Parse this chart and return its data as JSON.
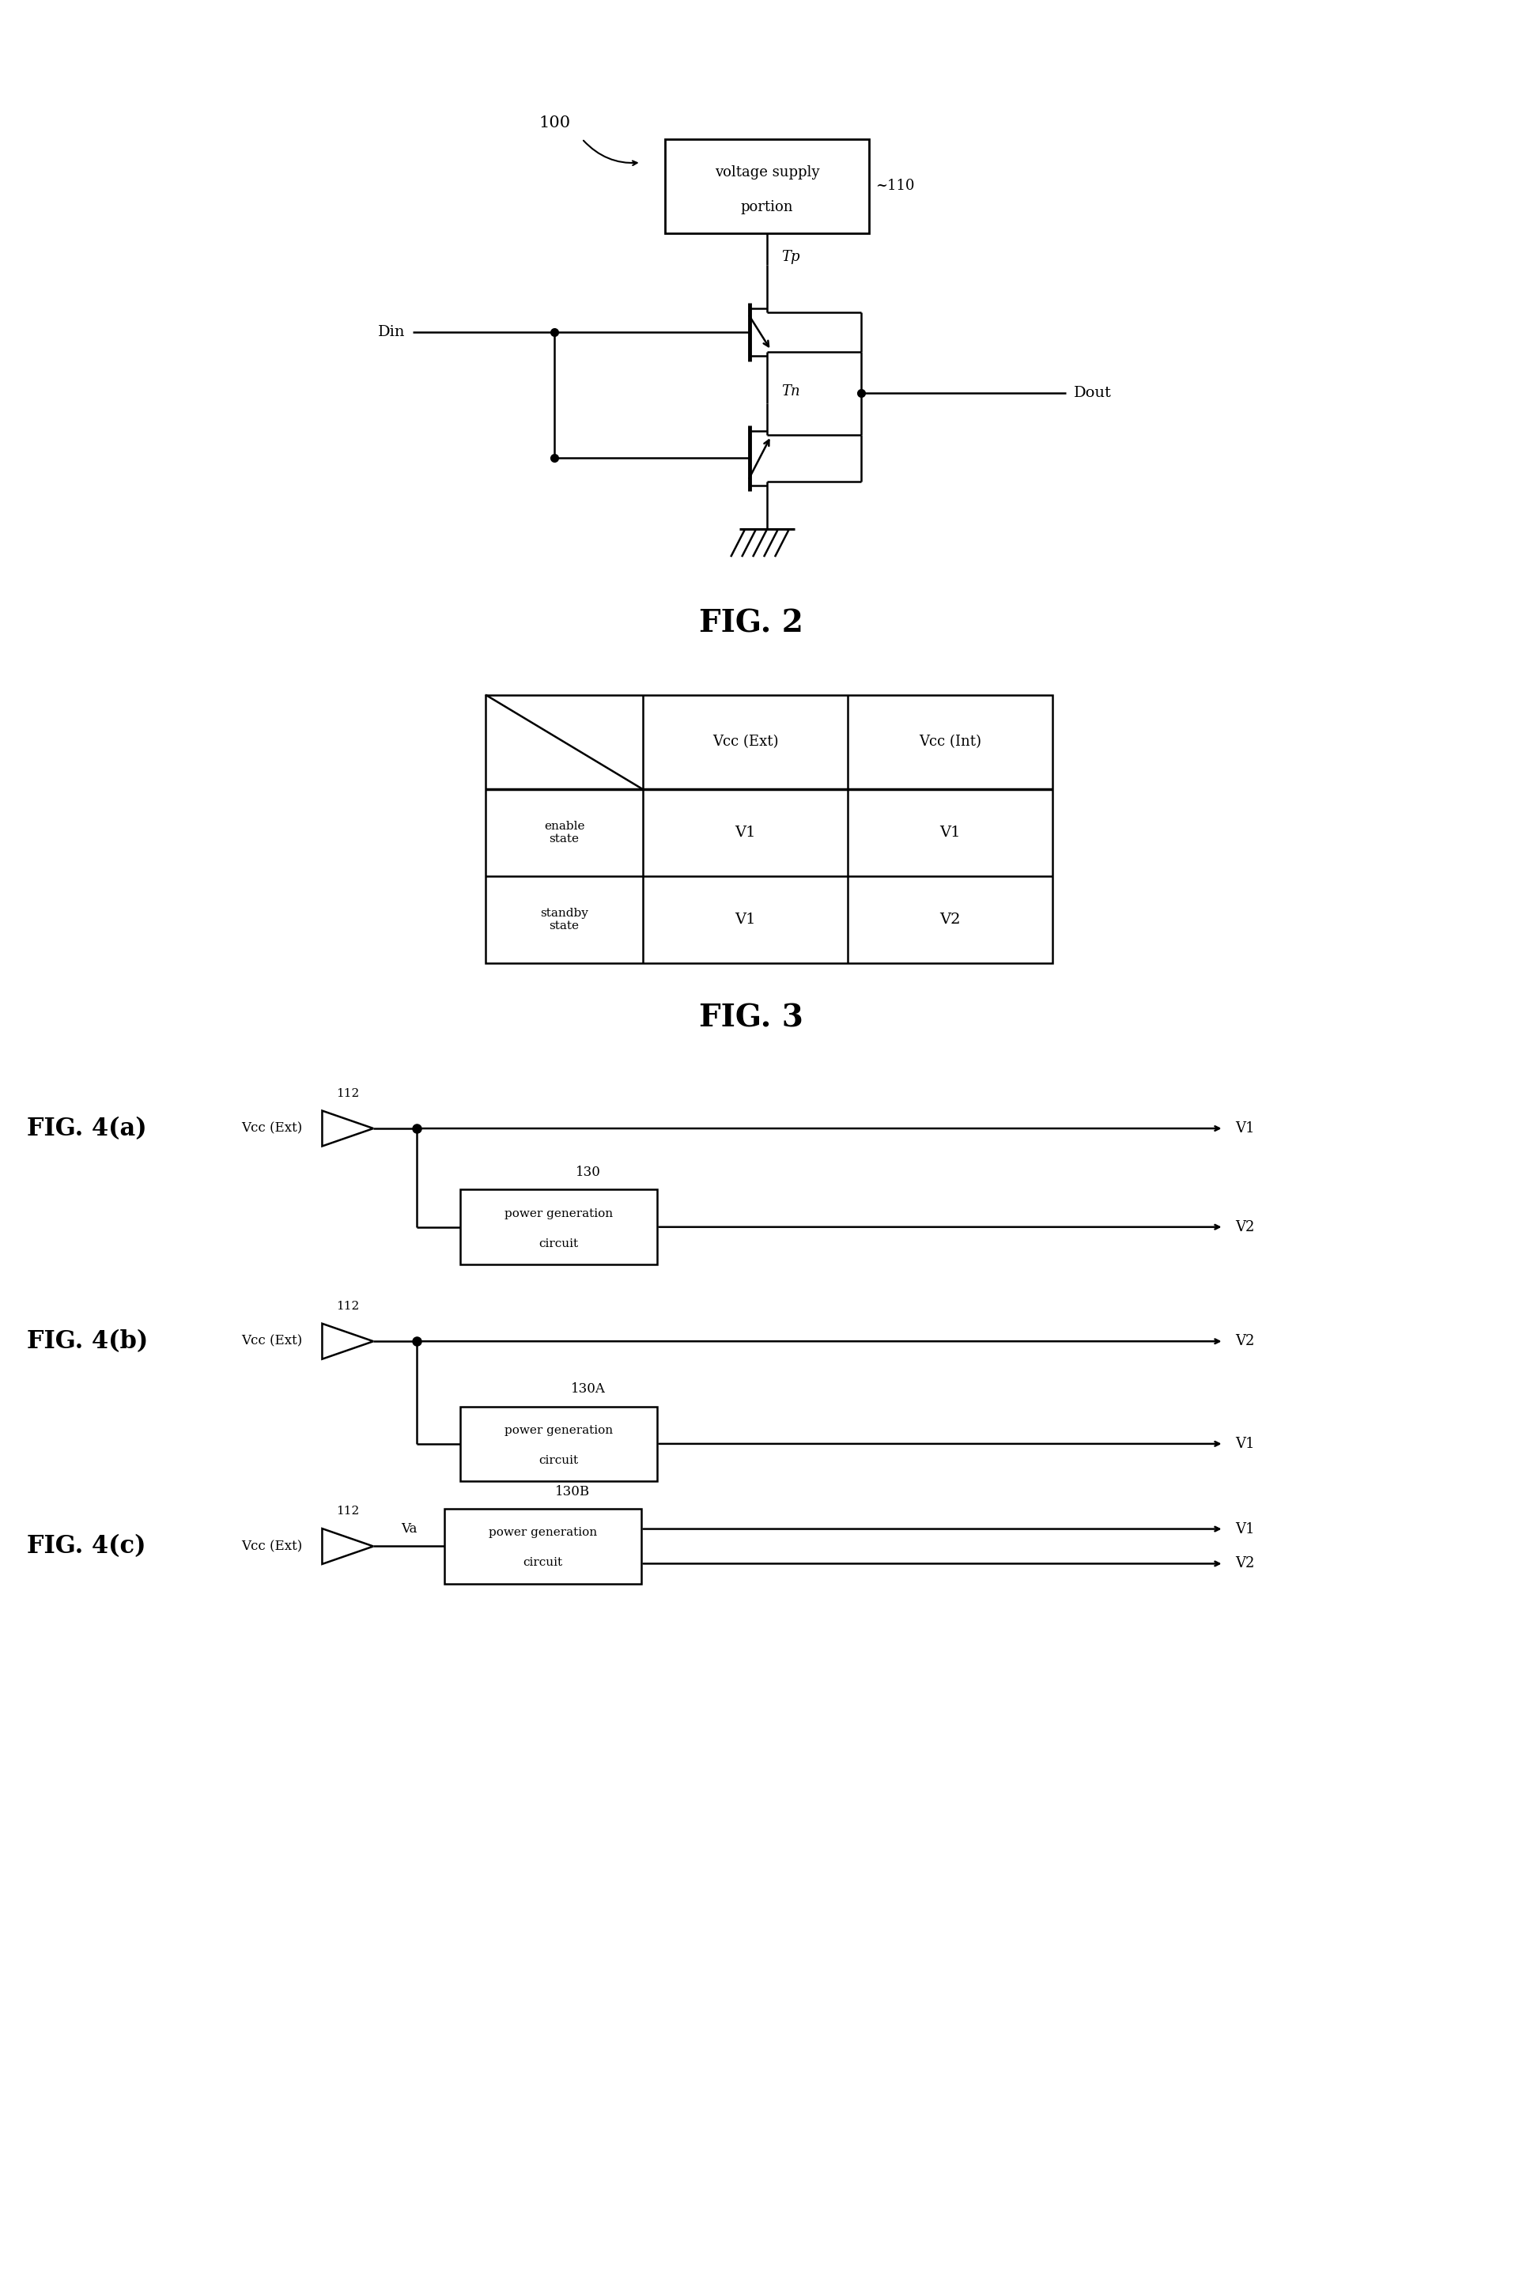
{
  "bg_color": "#ffffff",
  "fig_width": 19.45,
  "fig_height": 28.77,
  "fig2_label": "FIG. 2",
  "fig3_label": "FIG. 3",
  "fig4a_label": "FIG. 4(a)",
  "fig4b_label": "FIG. 4(b)",
  "fig4c_label": "FIG. 4(c)",
  "label_100": "100",
  "label_110": "~110",
  "label_112": "112",
  "label_130": "130",
  "label_130A": "130A",
  "label_130B": "130B",
  "label_Tp": "Tp",
  "label_Tn": "Tn",
  "label_Din": "Din",
  "label_Dout": "Dout",
  "label_V1": "V1",
  "label_V2": "V2",
  "label_Va": "Va",
  "label_VccExt": "Vcc (Ext)",
  "label_VccInt": "Vcc (Int)",
  "label_enable": "enable\nstate",
  "label_standby": "standby\nstate",
  "label_pgc": "power generation\ncircuit",
  "table_col1": "Vcc (Ext)",
  "table_col2": "Vcc (Int)"
}
